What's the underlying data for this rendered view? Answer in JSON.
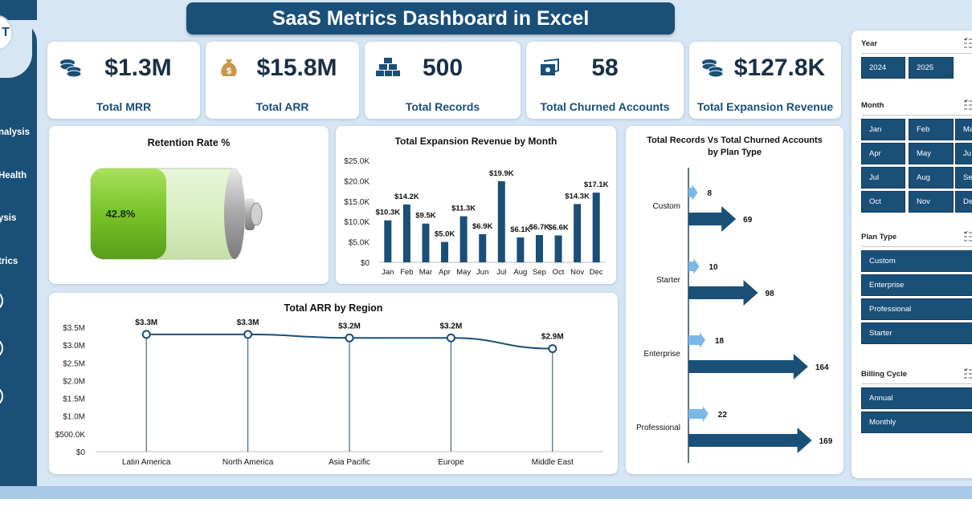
{
  "title": "SaaS Metrics Dashboard in Excel",
  "logo_text": "T",
  "nav": {
    "items": [
      "nalysis",
      "Health",
      "ysis",
      "trics"
    ]
  },
  "kpis": [
    {
      "value": "$1.3M",
      "label": "Total MRR",
      "icon": "coins-icon"
    },
    {
      "value": "$15.8M",
      "label": "Total ARR",
      "icon": "money-bag-icon"
    },
    {
      "value": "500",
      "label": "Total Records",
      "icon": "gold-bars-icon"
    },
    {
      "value": "58",
      "label": "Total Churned Accounts",
      "icon": "cash-icon"
    },
    {
      "value": "$127.8K",
      "label": "Total Expansion Revenue",
      "icon": "coins-icon"
    }
  ],
  "retention": {
    "title": "Retention Rate %",
    "value_label": "42.8%",
    "fraction": 0.428
  },
  "colors": {
    "primary": "#1a4f78",
    "bar": "#1a4f78",
    "battery_green": "#7ccc2e",
    "arrow_light": "#7ab8e8",
    "background": "#d6e6f5"
  },
  "chart_data": [
    {
      "type": "bar",
      "title": "Total Expansion Revenue by Month",
      "categories": [
        "Jan",
        "Feb",
        "Mar",
        "Apr",
        "May",
        "Jun",
        "Jul",
        "Aug",
        "Sep",
        "Oct",
        "Nov",
        "Dec"
      ],
      "values": [
        10.3,
        14.2,
        9.5,
        5.0,
        11.3,
        6.9,
        19.9,
        6.1,
        6.7,
        6.6,
        14.3,
        17.1
      ],
      "data_labels": [
        "$10.3K",
        "$14.2K",
        "$9.5K",
        "$5.0K",
        "$11.3K",
        "$6.9K",
        "$19.9K",
        "$6.1K",
        "$6.7K",
        "$6.6K",
        "$14.3K",
        "$17.1K"
      ],
      "yticks": [
        0,
        5,
        10,
        15,
        20,
        25
      ],
      "ytick_labels": [
        "$0",
        "$5.0K",
        "$10.0K",
        "$15.0K",
        "$20.0K",
        "$25.0K"
      ],
      "ylim": [
        0,
        25
      ],
      "xlabel": "",
      "ylabel": ""
    },
    {
      "type": "bar",
      "orientation": "horizontal",
      "title_lines": [
        "Total Records Vs Total Churned Accounts",
        "by Plan Type"
      ],
      "categories": [
        "Custom",
        "Starter",
        "Enterprise",
        "Professional"
      ],
      "series": [
        {
          "name": "Total Churned Accounts",
          "values": [
            8,
            10,
            18,
            22
          ]
        },
        {
          "name": "Total Records",
          "values": [
            69,
            98,
            164,
            169
          ]
        }
      ],
      "xlim": [
        0,
        180
      ]
    },
    {
      "type": "line",
      "title": "Total ARR by Region",
      "categories": [
        "Latin America",
        "North America",
        "Asia Pacific",
        "Europe",
        "Middle East"
      ],
      "values": [
        3.3,
        3.3,
        3.2,
        3.2,
        2.9
      ],
      "data_labels": [
        "$3.3M",
        "$3.3M",
        "$3.2M",
        "$3.2M",
        "$2.9M"
      ],
      "yticks": [
        0,
        0.5,
        1.0,
        1.5,
        2.0,
        2.5,
        3.0,
        3.5
      ],
      "ytick_labels": [
        "$0",
        "$500.0K",
        "$1.0M",
        "$1.5M",
        "$2.0M",
        "$2.5M",
        "$3.0M",
        "$3.5M"
      ],
      "ylim": [
        0,
        3.5
      ],
      "xlabel": "",
      "ylabel": ""
    }
  ],
  "slicers": [
    {
      "title": "Year",
      "options": [
        "2024",
        "2025"
      ]
    },
    {
      "title": "Month",
      "options": [
        "Jan",
        "Feb",
        "Mar",
        "Apr",
        "May",
        "Jun",
        "Jul",
        "Aug",
        "Sep",
        "Oct",
        "Nov",
        "Dec"
      ],
      "visible": [
        "Jan",
        "Feb",
        "Ma",
        "Apr",
        "May",
        "Ju",
        "Jul",
        "Aug",
        "Se",
        "Oct",
        "Nov",
        "De"
      ]
    },
    {
      "title": "Plan Type",
      "options": [
        "Custom",
        "Enterprise",
        "Professional",
        "Starter"
      ]
    },
    {
      "title": "Billing Cycle",
      "options": [
        "Annual",
        "Monthly"
      ]
    }
  ]
}
